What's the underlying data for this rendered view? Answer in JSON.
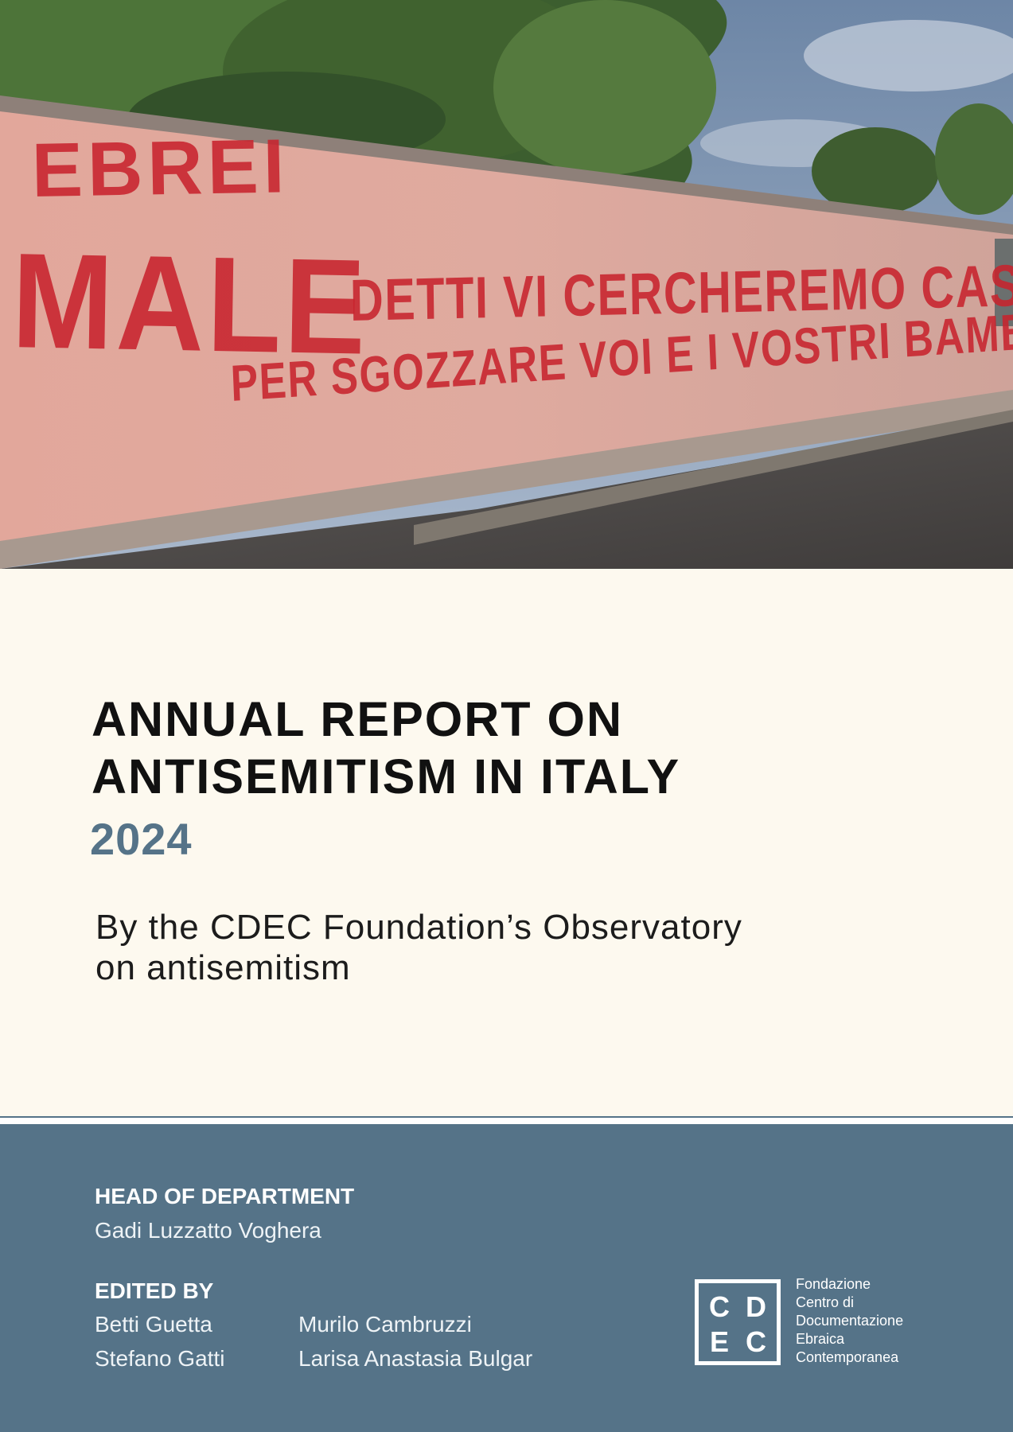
{
  "photo": {
    "graffiti": {
      "line1": "EBREI",
      "line2": "MALE",
      "line3": "DETTI VI CERCHEREMO CASA X CASA INTERTOLIAMO",
      "line4": "PER SGOZZARE VOI E I VOSTRI BAMBINI"
    }
  },
  "title": {
    "line1": "ANNUAL REPORT ON",
    "line2": "ANTISEMITISM IN ITALY",
    "year": "2024"
  },
  "subtitle": {
    "line1": "By the CDEC Foundation’s Observatory",
    "line2": "on antisemitism"
  },
  "credits": {
    "head_label": "HEAD OF DEPARTMENT",
    "head_name": "Gadi Luzzatto Voghera",
    "edited_label": "EDITED BY",
    "editors": [
      "Betti Guetta",
      "Stefano Gatti",
      "Murilo Cambruzzi",
      "Larisa Anastasia Bulgar"
    ]
  },
  "logo": {
    "letters": [
      "C",
      "D",
      "E",
      "C"
    ],
    "text": [
      "Fondazione",
      "Centro di",
      "Documentazione",
      "Ebraica",
      "Contemporanea"
    ]
  },
  "colors": {
    "accent_blue": "#557388",
    "cream": "#fdf9ef",
    "graffiti_red": "#c8242e"
  }
}
